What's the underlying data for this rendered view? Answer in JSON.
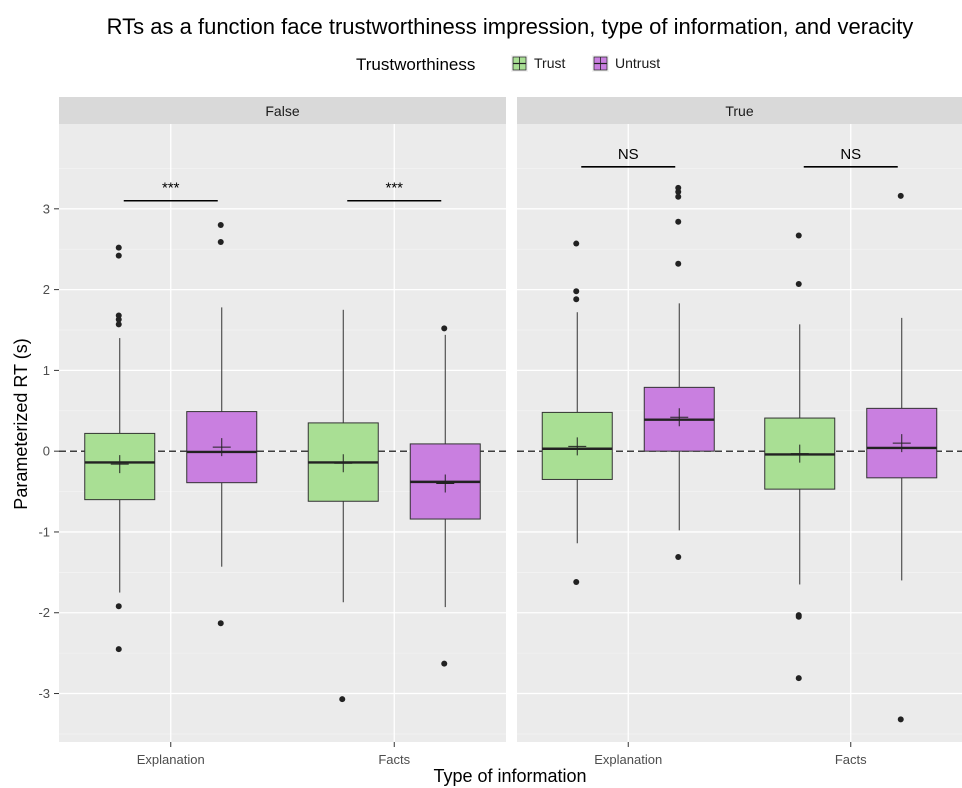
{
  "chart_data": {
    "type": "box",
    "title": "RTs as a function face trustworthiness impression, type of information, and veracity",
    "xlabel": "Type of information",
    "ylabel": "Parameterized RT (s)",
    "ylim": [
      -3.6,
      4.05
    ],
    "y_ticks": [
      -3,
      -2,
      -1,
      0,
      1,
      2,
      3
    ],
    "y_tick_labels": [
      "-3",
      "-2",
      "-1",
      "0",
      "1",
      "2",
      "3"
    ],
    "reference_line": 0,
    "grid": true,
    "legend": {
      "title": "Trustworthiness",
      "position": "top",
      "items": [
        {
          "label": "Trust",
          "color": "#a9df94"
        },
        {
          "label": "Untrust",
          "color": "#c97fe0"
        }
      ]
    },
    "categories": [
      "Explanation",
      "Facts"
    ],
    "panels": [
      {
        "label": "False",
        "groups": [
          {
            "category": "Explanation",
            "significance": "***",
            "boxes": [
              {
                "series": "Trust",
                "q1": -0.6,
                "median": -0.14,
                "q3": 0.22,
                "whisker_low": -1.75,
                "whisker_high": 1.4,
                "mean": -0.16,
                "outliers": [
                  2.52,
                  2.42,
                  1.68,
                  1.63,
                  1.57,
                  -1.92,
                  -2.45
                ]
              },
              {
                "series": "Untrust",
                "q1": -0.39,
                "median": -0.01,
                "q3": 0.49,
                "whisker_low": -1.43,
                "whisker_high": 1.78,
                "mean": 0.05,
                "outliers": [
                  2.8,
                  2.59,
                  -2.13
                ]
              }
            ]
          },
          {
            "category": "Facts",
            "significance": "***",
            "boxes": [
              {
                "series": "Trust",
                "q1": -0.62,
                "median": -0.14,
                "q3": 0.35,
                "whisker_low": -1.87,
                "whisker_high": 1.75,
                "mean": -0.15,
                "outliers": [
                  -3.07
                ]
              },
              {
                "series": "Untrust",
                "q1": -0.84,
                "median": -0.38,
                "q3": 0.09,
                "whisker_low": -1.93,
                "whisker_high": 1.44,
                "mean": -0.4,
                "outliers": [
                  1.52,
                  -2.63
                ]
              }
            ]
          }
        ]
      },
      {
        "label": "True",
        "groups": [
          {
            "category": "Explanation",
            "significance": "NS",
            "boxes": [
              {
                "series": "Trust",
                "q1": -0.35,
                "median": 0.03,
                "q3": 0.48,
                "whisker_low": -1.14,
                "whisker_high": 1.72,
                "mean": 0.06,
                "outliers": [
                  2.57,
                  1.98,
                  1.88,
                  -1.62
                ]
              },
              {
                "series": "Untrust",
                "q1": 0.0,
                "median": 0.39,
                "q3": 0.79,
                "whisker_low": -0.98,
                "whisker_high": 1.83,
                "mean": 0.42,
                "outliers": [
                  3.26,
                  3.21,
                  3.15,
                  2.84,
                  2.32,
                  -1.31
                ]
              }
            ]
          },
          {
            "category": "Facts",
            "significance": "NS",
            "boxes": [
              {
                "series": "Trust",
                "q1": -0.47,
                "median": -0.04,
                "q3": 0.41,
                "whisker_low": -1.65,
                "whisker_high": 1.57,
                "mean": -0.03,
                "outliers": [
                  2.67,
                  2.07,
                  -2.03,
                  -2.05,
                  -2.81
                ]
              },
              {
                "series": "Untrust",
                "q1": -0.33,
                "median": 0.04,
                "q3": 0.53,
                "whisker_low": -1.6,
                "whisker_high": 1.65,
                "mean": 0.1,
                "outliers": [
                  3.16,
                  -3.32
                ]
              }
            ]
          }
        ]
      }
    ]
  }
}
